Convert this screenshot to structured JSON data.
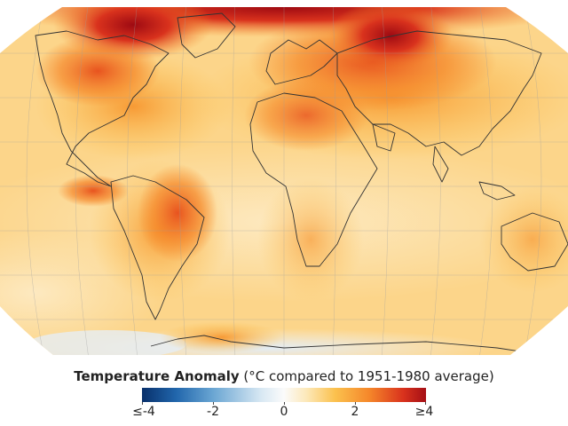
{
  "legend": {
    "title_bold": "Temperature Anomaly",
    "title_rest": " (°C compared to 1951-1980 average)",
    "ticks": [
      "≤-4",
      "-2",
      "0",
      "2",
      "≥4"
    ],
    "range": [
      -4,
      4
    ]
  },
  "colors": {
    "cold": "#08306b",
    "neutral": "#fbfbfb",
    "warm": "#fbc14e",
    "hot": "#a50f15"
  }
}
